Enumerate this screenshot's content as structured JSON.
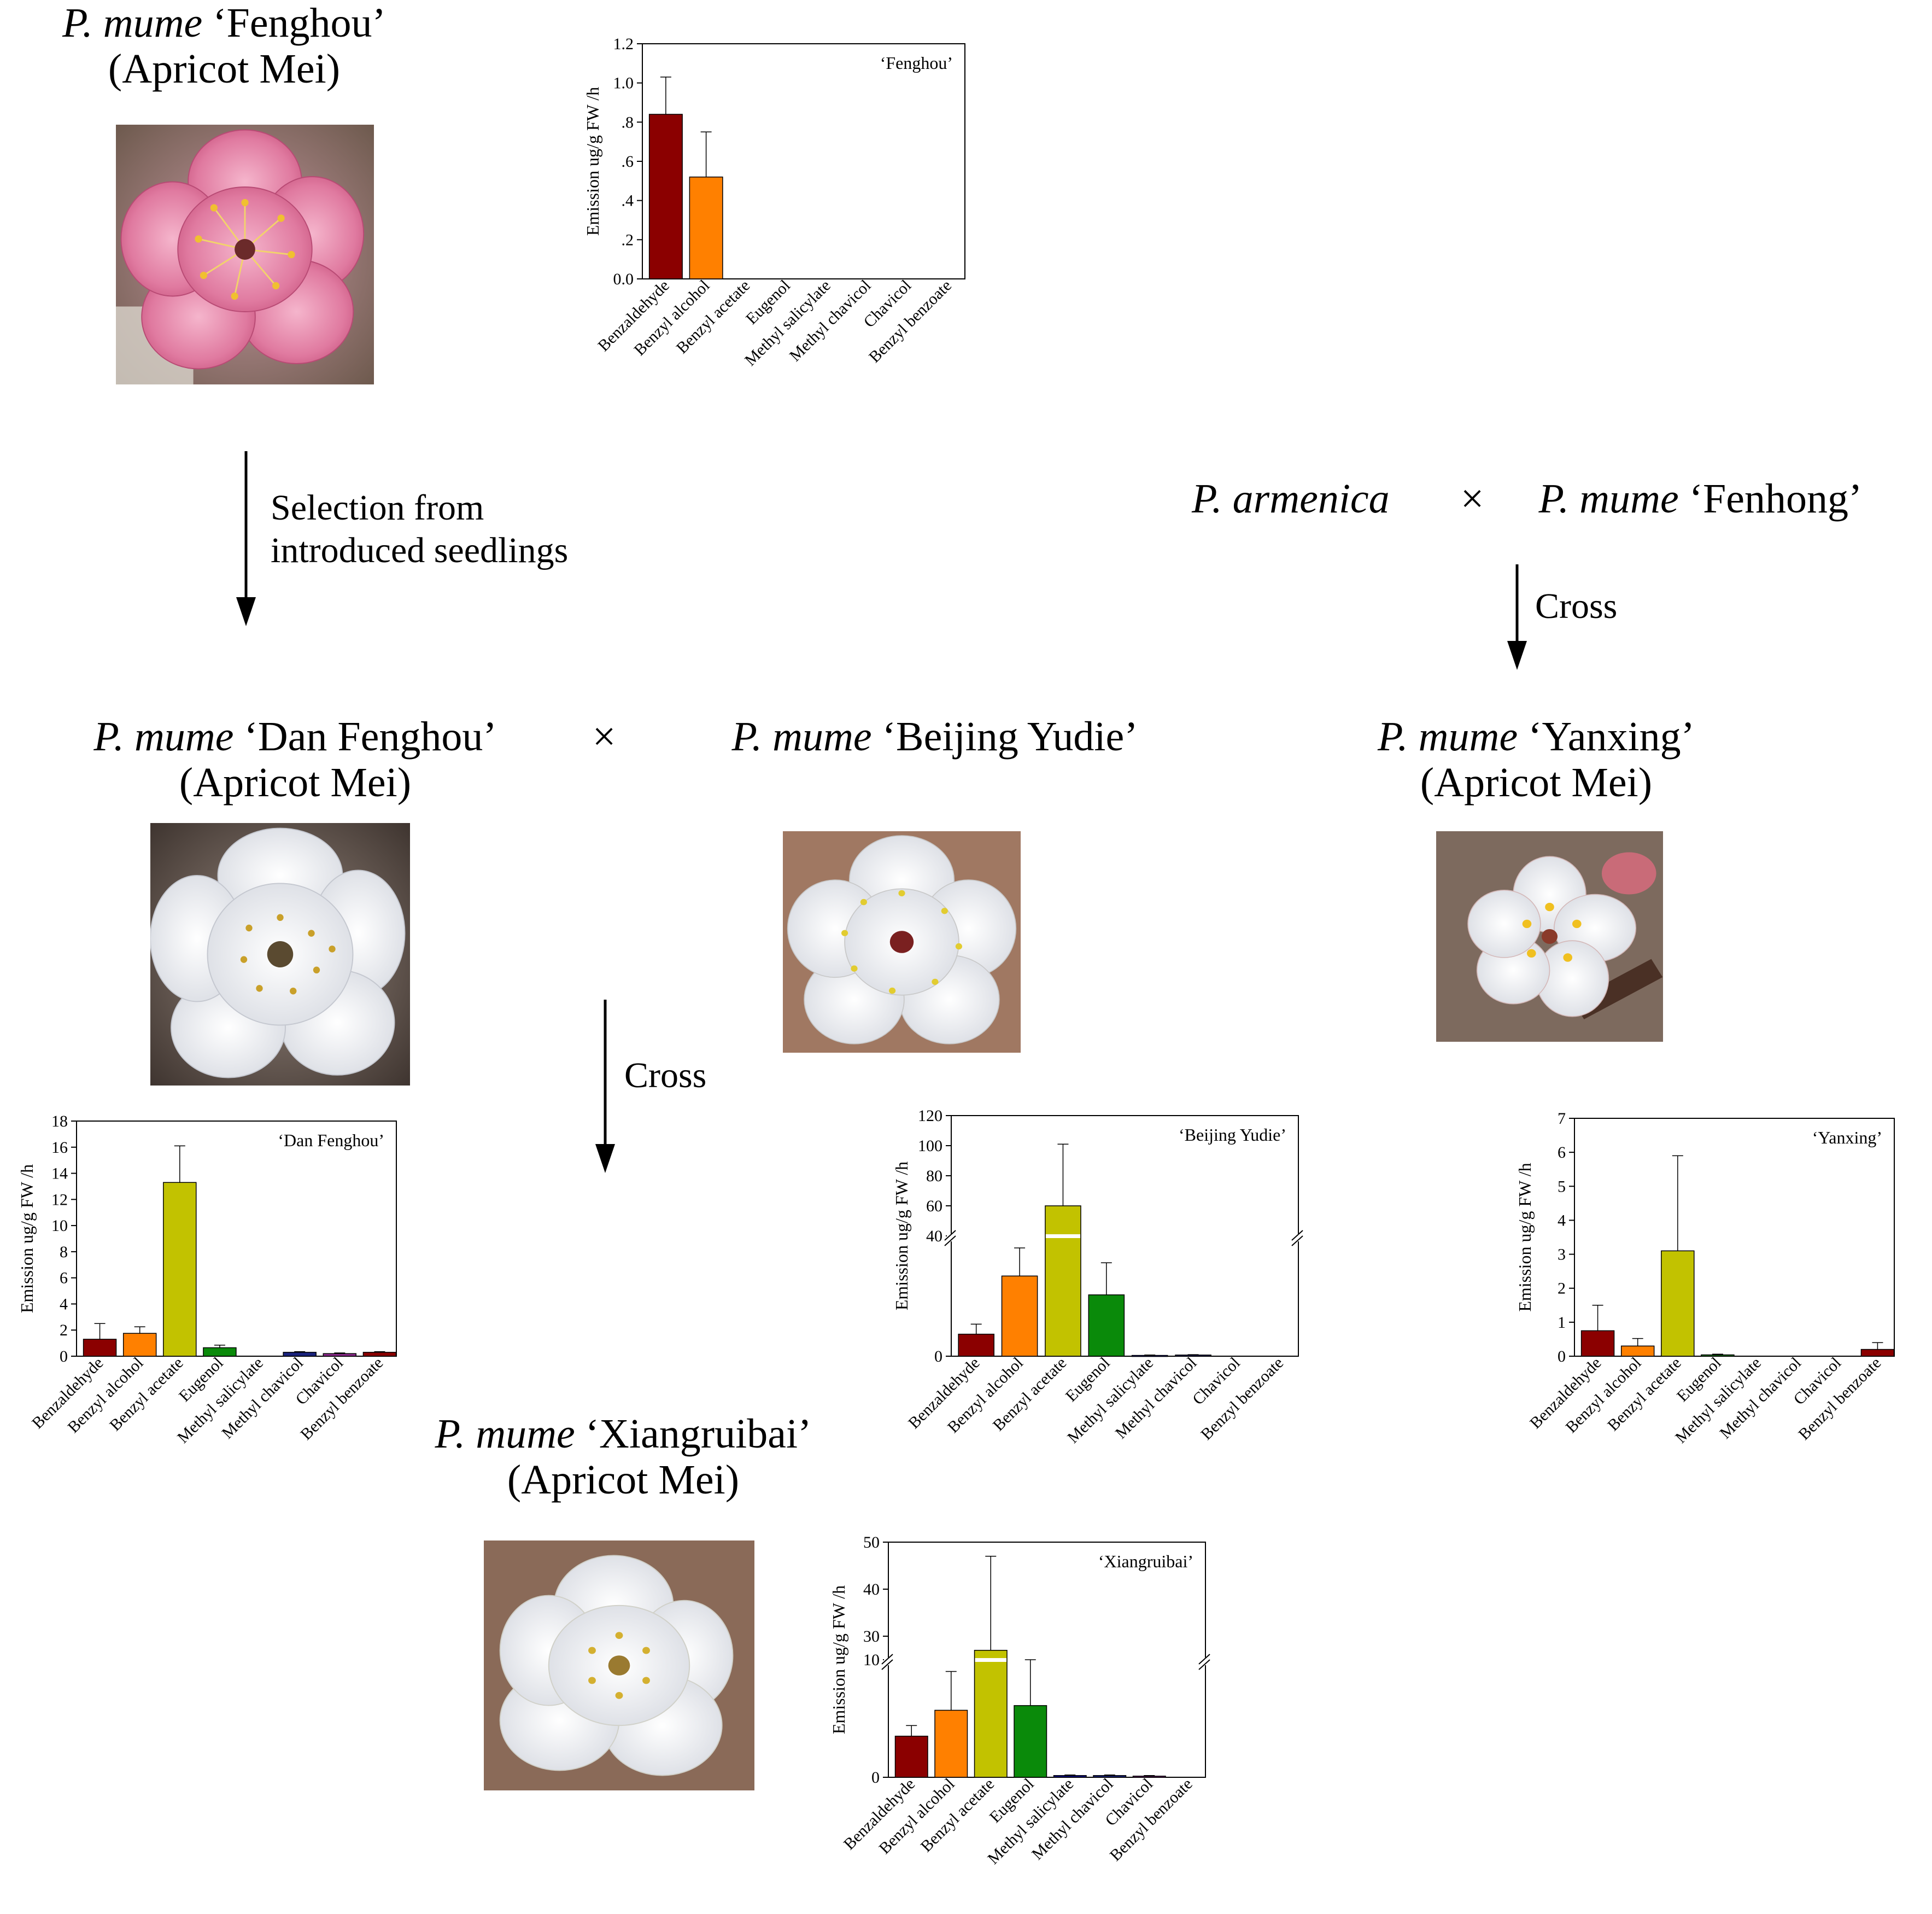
{
  "nodes": {
    "fenghou": {
      "species": "P. mume",
      "cultivar": "‘Fenghou’",
      "group": "(Apricot Mei)"
    },
    "danfenghou": {
      "species": "P. mume",
      "cultivar": "‘Dan Fenghou’",
      "group": "(Apricot Mei)"
    },
    "beijingyudie": {
      "species": "P. mume",
      "cultivar": "‘Beijing Yudie’"
    },
    "yanxing": {
      "species": "P. mume",
      "cultivar": "‘Yanxing’",
      "group": "(Apricot Mei)"
    },
    "xiangruibai": {
      "species": "P. mume",
      "cultivar": "‘Xiangruibai’",
      "group": "(Apricot Mei)"
    },
    "armenica": {
      "species": "P. armenica"
    },
    "fenhong": {
      "species": "P. mume",
      "cultivar": "‘Fenhong’"
    }
  },
  "symbols": {
    "cross": "×"
  },
  "arrows": {
    "selection": [
      "Selection from",
      "introduced seedlings"
    ],
    "cross_right": "Cross",
    "cross_center": "Cross"
  },
  "colors": {
    "Benzaldehyde": "#8B0000",
    "Benzyl alcohol": "#FF8000",
    "Benzyl acetate": "#C2C200",
    "Eugenol": "#0A8A0A",
    "Methyl salicylate": "#00008B",
    "Methyl chavicol": "#1A237E",
    "Chavicol": "#8B2A8B",
    "Benzyl benzoate": "#8B0000"
  },
  "chart_data": [
    {
      "type": "bar",
      "title": "‘Fenghou’",
      "ylabel": "Emission ug/g FW /h",
      "categories": [
        "Benzaldehyde",
        "Benzyl alcohol",
        "Benzyl acetate",
        "Eugenol",
        "Methyl salicylate",
        "Methyl chavicol",
        "Chavicol",
        "Benzyl benzoate"
      ],
      "values": [
        0.84,
        0.52,
        0,
        0,
        0,
        0,
        0,
        0
      ],
      "errors": [
        0.19,
        0.23,
        0,
        0,
        0,
        0,
        0,
        0
      ],
      "ylim": [
        0,
        1.2
      ],
      "ytick_labels": [
        "0.0",
        ".2",
        ".4",
        ".6",
        ".8",
        "1.0",
        "1.2"
      ]
    },
    {
      "type": "bar",
      "title": "‘Dan Fenghou’",
      "ylabel": "Emission ug/g FW /h",
      "categories": [
        "Benzaldehyde",
        "Benzyl alcohol",
        "Benzyl acetate",
        "Eugenol",
        "Methyl salicylate",
        "Methyl chavicol",
        "Chavicol",
        "Benzyl benzoate"
      ],
      "values": [
        1.3,
        1.75,
        13.3,
        0.65,
        0,
        0.3,
        0.2,
        0.3
      ],
      "errors": [
        1.2,
        0.5,
        2.8,
        0.2,
        0,
        0.05,
        0.05,
        0.05
      ],
      "ylim": [
        0,
        18
      ],
      "ytick_labels": [
        "0",
        "2",
        "4",
        "6",
        "8",
        "10",
        "12",
        "14",
        "16",
        "18"
      ]
    },
    {
      "type": "bar",
      "title": "‘Beijing Yudie’",
      "ylabel": "Emission ug/g FW /h",
      "categories": [
        "Benzaldehyde",
        "Benzyl alcohol",
        "Benzyl acetate",
        "Eugenol",
        "Methyl salicylate",
        "Methyl chavicol",
        "Chavicol",
        "Benzyl benzoate"
      ],
      "values": [
        5.5,
        20,
        60,
        15.3,
        0.2,
        0.3,
        0,
        0
      ],
      "errors": [
        2.5,
        7,
        41,
        8,
        0.1,
        0.1,
        0,
        0
      ],
      "axis_break": [
        30,
        40
      ],
      "ylim": [
        0,
        120
      ],
      "ytick_labels": [
        "0",
        "40",
        "60",
        "80",
        "100",
        "120"
      ]
    },
    {
      "type": "bar",
      "title": "‘Yanxing’",
      "ylabel": "Emission ug/g FW /h",
      "categories": [
        "Benzaldehyde",
        "Benzyl alcohol",
        "Benzyl acetate",
        "Eugenol",
        "Methyl salicylate",
        "Methyl chavicol",
        "Chavicol",
        "Benzyl benzoate"
      ],
      "values": [
        0.75,
        0.3,
        3.1,
        0.04,
        0,
        0,
        0,
        0.2
      ],
      "errors": [
        0.75,
        0.22,
        2.8,
        0.02,
        0,
        0,
        0,
        0.2
      ],
      "ylim": [
        0,
        7
      ],
      "ytick_labels": [
        "0",
        "1",
        "2",
        "3",
        "4",
        "5",
        "6",
        "7"
      ]
    },
    {
      "type": "bar",
      "title": "‘Xiangruibai’",
      "ylabel": "Emission ug/g FW /h",
      "categories": [
        "Benzaldehyde",
        "Benzyl alcohol",
        "Benzyl acetate",
        "Eugenol",
        "Methyl salicylate",
        "Methyl chavicol",
        "Chavicol",
        "Benzyl benzoate"
      ],
      "values": [
        3.5,
        5.7,
        27,
        6.1,
        0.15,
        0.15,
        0.1,
        0
      ],
      "errors": [
        0.9,
        3.3,
        20,
        3.9,
        0.05,
        0.05,
        0.05,
        0
      ],
      "axis_break": [
        10,
        25
      ],
      "ylim": [
        0,
        50
      ],
      "ytick_labels": [
        "0",
        "10",
        "30",
        "40",
        "50"
      ]
    }
  ]
}
